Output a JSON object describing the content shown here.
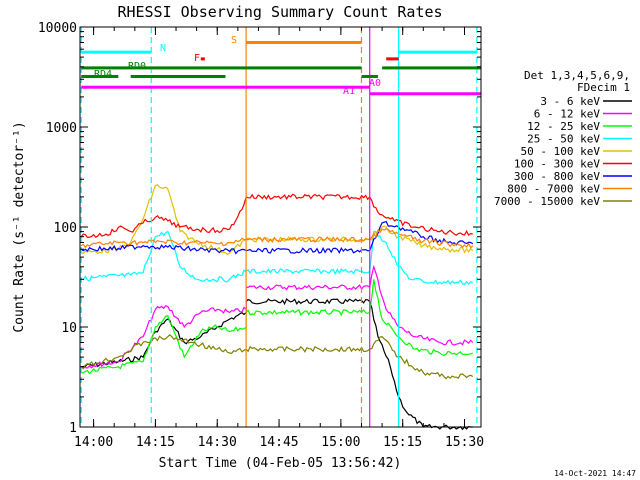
{
  "chart_data": {
    "type": "line",
    "title": "RHESSI Observing Summary Count Rates",
    "xlabel": "Start Time (04-Feb-05 13:56:42)",
    "ylabel": "Count Rate (s⁻¹ detector⁻¹)",
    "yscale": "log",
    "ylim": [
      1,
      10000
    ],
    "xlim": [
      "13:56:42",
      "15:34:00"
    ],
    "x_ticks": [
      "14:00",
      "14:15",
      "14:30",
      "14:45",
      "15:00",
      "15:15",
      "15:30"
    ],
    "y_ticks": [
      "1",
      "10",
      "100",
      "1000",
      "10000"
    ],
    "grid": false,
    "legend_placement": "right",
    "legend_header": [
      "Det 1,3,4,5,6,9,",
      "FDecim 1"
    ],
    "timestamp": "14-Oct-2021 14:47",
    "colors": {
      "3 - 6 keV": "#000000",
      "6 - 12 keV": "#ff00ff",
      "12 - 25 keV": "#00ff00",
      "25 - 50 keV": "#00ffff",
      "50 - 100 keV": "#e0c000",
      "100 - 300 keV": "#ff0000",
      "300 - 800 keV": "#0000ff",
      "800 - 7000 keV": "#ff8000",
      "7000 - 15000 keV": "#808000"
    },
    "series": [
      {
        "name": "3 - 6 keV",
        "x": [
          "13:57",
          "14:06",
          "14:12",
          "14:15",
          "14:18",
          "14:22",
          "14:26",
          "14:30",
          "14:33",
          "14:37",
          "14:37",
          "15:07",
          "15:09",
          "15:12",
          "15:14",
          "15:16",
          "15:20",
          "15:26",
          "15:30",
          "15:32"
        ],
        "y": [
          4,
          4.5,
          5,
          9,
          12,
          7,
          8,
          10,
          12,
          14,
          18,
          18,
          8,
          4,
          2,
          1.4,
          1,
          1,
          1,
          1
        ]
      },
      {
        "name": "6 - 12 keV",
        "x": [
          "13:57",
          "14:06",
          "14:12",
          "14:15",
          "14:18",
          "14:22",
          "14:26",
          "14:30",
          "14:33",
          "14:37",
          "14:37",
          "15:07",
          "15:08",
          "15:11",
          "15:14",
          "15:18",
          "15:24",
          "15:32"
        ],
        "y": [
          4,
          4.5,
          8,
          15,
          16,
          10,
          14,
          15,
          14,
          15,
          25,
          25,
          40,
          15,
          10,
          8,
          7,
          7
        ]
      },
      {
        "name": "12 - 25 keV",
        "x": [
          "13:57",
          "14:06",
          "14:12",
          "14:15",
          "14:18",
          "14:22",
          "14:26",
          "14:30",
          "14:33",
          "14:37",
          "14:37",
          "15:07",
          "15:08",
          "15:10",
          "15:14",
          "15:18",
          "15:24",
          "15:32"
        ],
        "y": [
          3.5,
          4,
          4.5,
          10,
          13,
          5,
          9,
          10,
          9,
          10,
          14,
          14,
          30,
          12,
          8,
          6,
          5.5,
          5.5
        ]
      },
      {
        "name": "25 - 50 keV",
        "x": [
          "13:57",
          "14:03",
          "14:09",
          "14:12",
          "14:15",
          "14:18",
          "14:21",
          "14:25",
          "14:29",
          "14:33",
          "14:37",
          "15:07",
          "15:08",
          "15:11",
          "15:14",
          "15:17",
          "15:22",
          "15:28",
          "15:32"
        ],
        "y": [
          30,
          32,
          33,
          35,
          80,
          90,
          40,
          30,
          30,
          30,
          36,
          36,
          90,
          70,
          40,
          30,
          28,
          28,
          28
        ]
      },
      {
        "name": "50 - 100 keV",
        "x": [
          "13:57",
          "14:06",
          "14:09",
          "14:12",
          "14:15",
          "14:18",
          "14:21",
          "14:25",
          "14:30",
          "14:33",
          "14:37",
          "15:07",
          "15:10",
          "15:14",
          "15:20",
          "15:26",
          "15:32"
        ],
        "y": [
          55,
          60,
          70,
          120,
          260,
          240,
          90,
          70,
          60,
          55,
          75,
          75,
          100,
          80,
          65,
          60,
          58
        ]
      },
      {
        "name": "100 - 300 keV",
        "x": [
          "13:57",
          "14:03",
          "14:07",
          "14:09",
          "14:12",
          "14:15",
          "14:18",
          "14:21",
          "14:25",
          "14:30",
          "14:33",
          "14:36",
          "14:37",
          "15:07",
          "15:09",
          "15:13",
          "15:18",
          "15:24",
          "15:32"
        ],
        "y": [
          80,
          85,
          100,
          90,
          110,
          125,
          115,
          100,
          95,
          92,
          95,
          150,
          200,
          200,
          140,
          115,
          100,
          90,
          85
        ]
      },
      {
        "name": "300 - 800 keV",
        "x": [
          "13:57",
          "14:06",
          "14:12",
          "14:18",
          "14:24",
          "14:30",
          "14:33",
          "14:37",
          "15:07",
          "15:10",
          "15:14",
          "15:20",
          "15:26",
          "15:32"
        ],
        "y": [
          60,
          61,
          65,
          63,
          60,
          58,
          57,
          58,
          58,
          110,
          100,
          80,
          70,
          68
        ]
      },
      {
        "name": "800 - 7000 keV",
        "x": [
          "13:57",
          "14:06",
          "14:12",
          "14:16",
          "14:20",
          "14:26",
          "14:30",
          "14:33",
          "14:37",
          "15:07",
          "15:10",
          "15:14",
          "15:20",
          "15:26",
          "15:32"
        ],
        "y": [
          65,
          70,
          70,
          72,
          70,
          70,
          68,
          70,
          75,
          75,
          95,
          85,
          72,
          68,
          65
        ]
      },
      {
        "name": "7000 - 15000 keV",
        "x": [
          "13:57",
          "14:06",
          "14:12",
          "14:18",
          "14:24",
          "14:30",
          "14:33",
          "14:37",
          "15:07",
          "15:10",
          "15:14",
          "15:20",
          "15:26",
          "15:32"
        ],
        "y": [
          4,
          5,
          7,
          8,
          7,
          6,
          5.5,
          6,
          6,
          8,
          5,
          3.5,
          3.2,
          3.2
        ]
      }
    ],
    "vertical_lines": [
      {
        "x": "13:57",
        "color": "#00ffff",
        "style": "dashed"
      },
      {
        "x": "14:14",
        "color": "#00ffff",
        "style": "dashed"
      },
      {
        "x": "14:37",
        "color": "#ff8000",
        "style": "solid"
      },
      {
        "x": "15:05",
        "color": "#ff8000",
        "style": "dashed"
      },
      {
        "x": "15:07",
        "color": "#ff00ff",
        "style": "solid"
      },
      {
        "x": "15:14",
        "color": "#00ffff",
        "style": "solid"
      },
      {
        "x": "15:33",
        "color": "#00ffff",
        "style": "dashed"
      }
    ],
    "flag_bars": [
      {
        "label": "N",
        "color": "#00ffff",
        "y": 5600,
        "segments": [
          [
            "13:57",
            "14:14"
          ],
          [
            "15:14",
            "15:33"
          ]
        ]
      },
      {
        "label": "S",
        "color": "#ff8000",
        "y": 7000,
        "segments": [
          [
            "14:37",
            "15:05"
          ]
        ]
      },
      {
        "label": "F",
        "color": "#ff0000",
        "y": 4800,
        "segments": [
          [
            "14:26",
            "14:27"
          ],
          [
            "15:11",
            "15:14"
          ]
        ]
      },
      {
        "label": "RD0",
        "color": "#008000",
        "y": 3900,
        "segments": [
          [
            "13:57",
            "15:05"
          ],
          [
            "15:10",
            "15:34"
          ]
        ]
      },
      {
        "label": "RD4",
        "color": "#008000",
        "y": 3200,
        "segments": [
          [
            "13:57",
            "14:06"
          ],
          [
            "14:09",
            "14:32"
          ],
          [
            "15:05",
            "15:09"
          ]
        ]
      },
      {
        "label": "A1",
        "color": "#ff00ff",
        "y": 2500,
        "segments": [
          [
            "13:57",
            "15:07"
          ]
        ]
      },
      {
        "label": "A0",
        "color": "#ff00ff",
        "y": 2150,
        "segments": [
          [
            "15:07",
            "15:34"
          ]
        ]
      }
    ]
  }
}
